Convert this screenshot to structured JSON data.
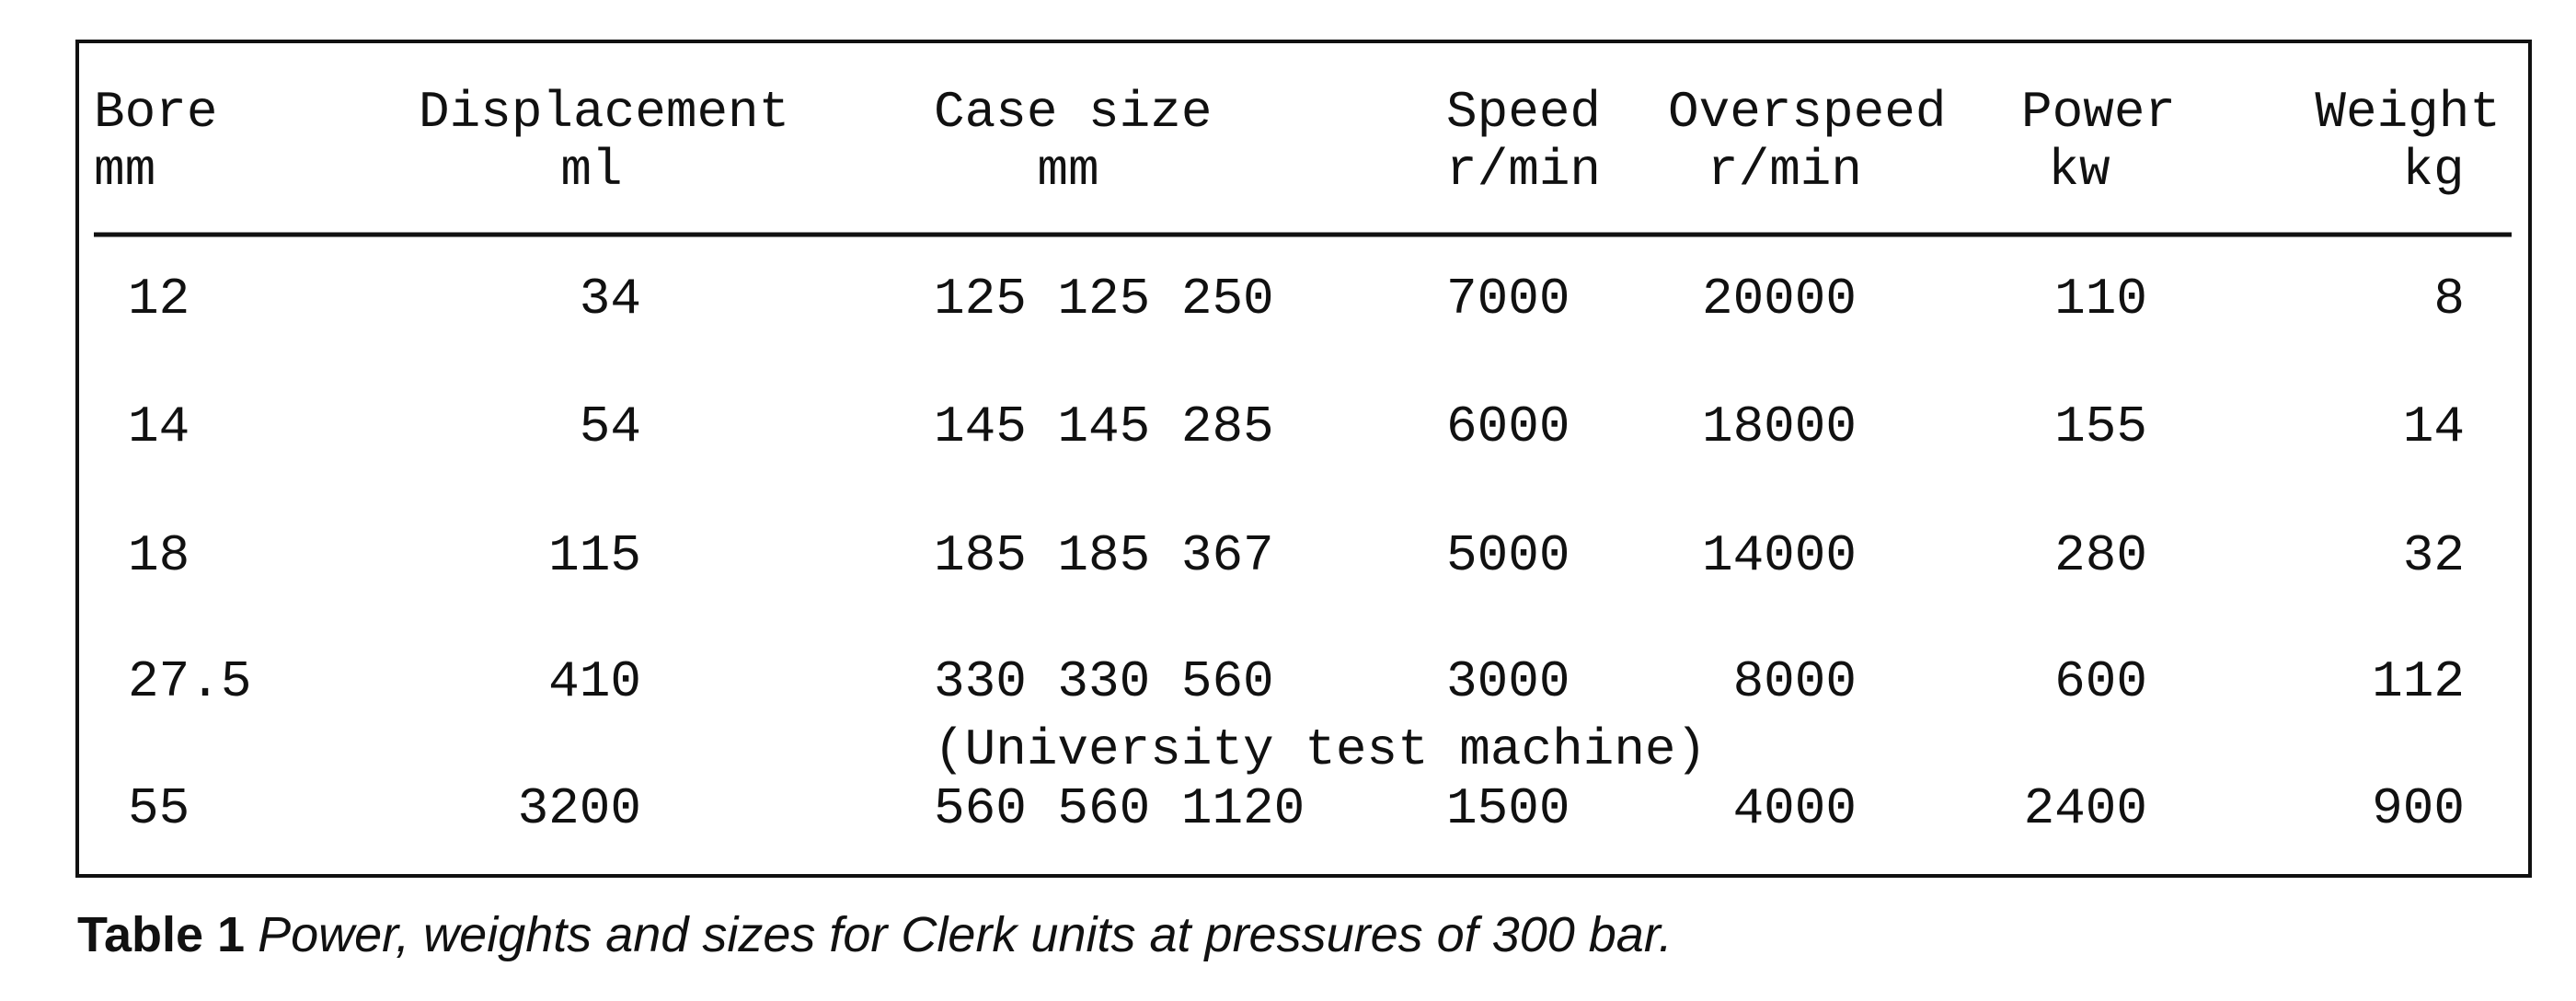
{
  "table": {
    "columns": [
      {
        "name": "Bore",
        "unit": "mm"
      },
      {
        "name": "Displacement",
        "unit": "ml"
      },
      {
        "name": "Case size",
        "unit": "mm"
      },
      {
        "name": "Speed",
        "unit": "r/min"
      },
      {
        "name": "Overspeed",
        "unit": "r/min"
      },
      {
        "name": "Power",
        "unit": "kw"
      },
      {
        "name": "Weight",
        "unit": "kg"
      }
    ],
    "rows": [
      [
        12,
        34,
        "125 125 250",
        7000,
        20000,
        110,
        8
      ],
      [
        14,
        54,
        "145 145 285",
        6000,
        18000,
        155,
        14
      ],
      [
        18,
        115,
        "185 185 367",
        5000,
        14000,
        280,
        32
      ],
      [
        27.5,
        410,
        "330 330 560",
        3000,
        8000,
        600,
        112
      ],
      [
        55,
        3200,
        "560 560 1120",
        1500,
        4000,
        2400,
        900
      ]
    ],
    "note": "(University test machine)"
  },
  "caption": {
    "label": "Table 1",
    "text": "Power, weights and sizes for Clerk  units at pressures of 300 bar."
  }
}
